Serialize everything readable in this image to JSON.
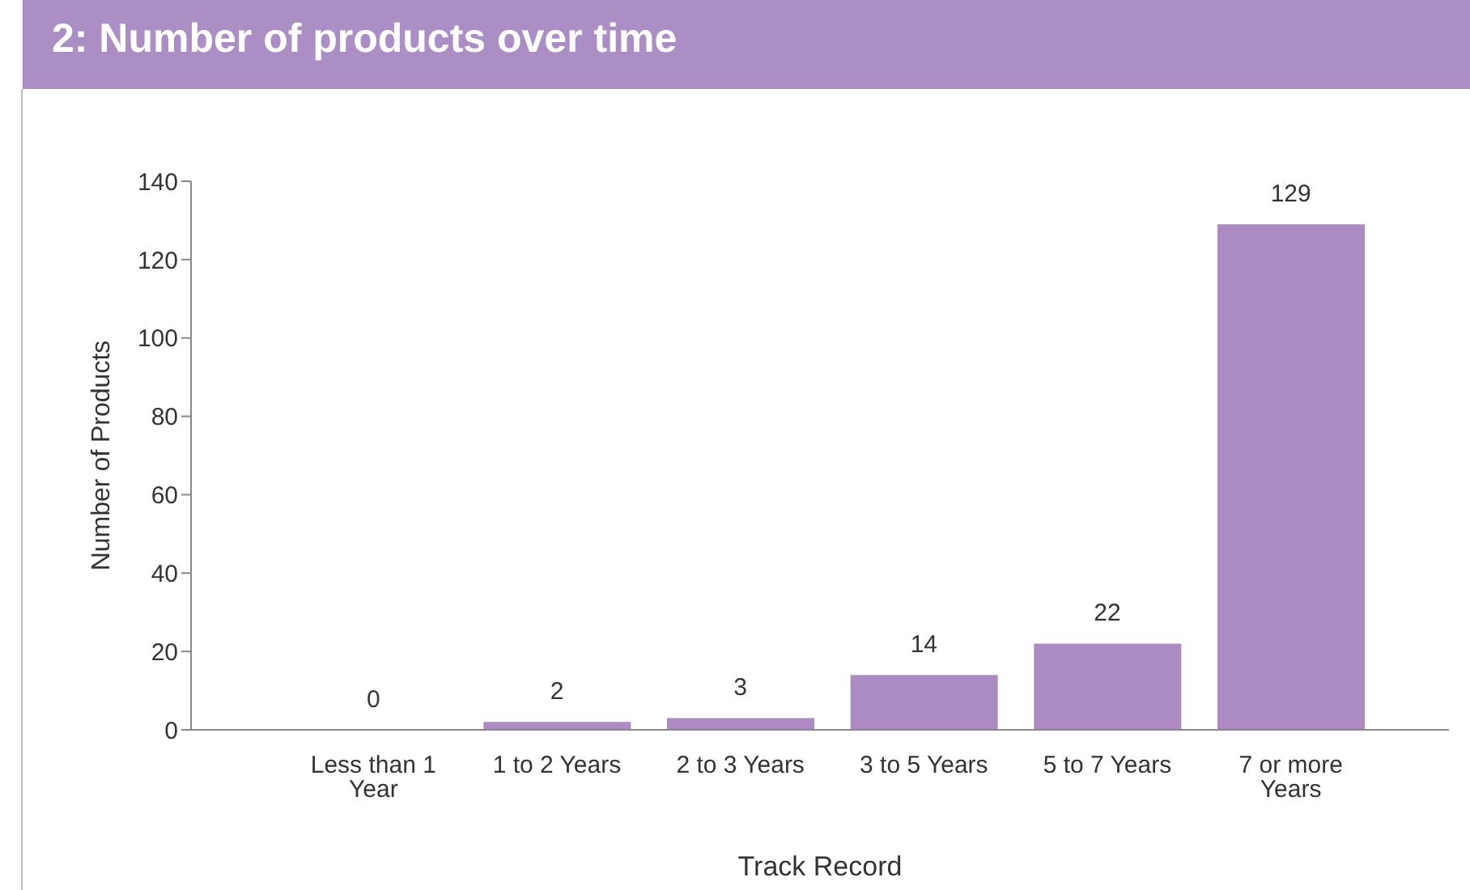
{
  "chart_data": {
    "type": "bar",
    "title": "2: Number of products over time",
    "categories": [
      "Less than 1 Year",
      "1 to 2 Years",
      "2 to 3 Years",
      "3 to 5 Years",
      "5 to 7 Years",
      "7 or more Years"
    ],
    "values": [
      0,
      2,
      3,
      14,
      22,
      129
    ],
    "color": "#ab8bc2",
    "xlabel": "Track Record",
    "ylabel": "Number of Products",
    "ylim": [
      0,
      140
    ],
    "yticks": [
      0,
      20,
      40,
      60,
      80,
      100,
      120,
      140
    ],
    "data_labels": true
  }
}
